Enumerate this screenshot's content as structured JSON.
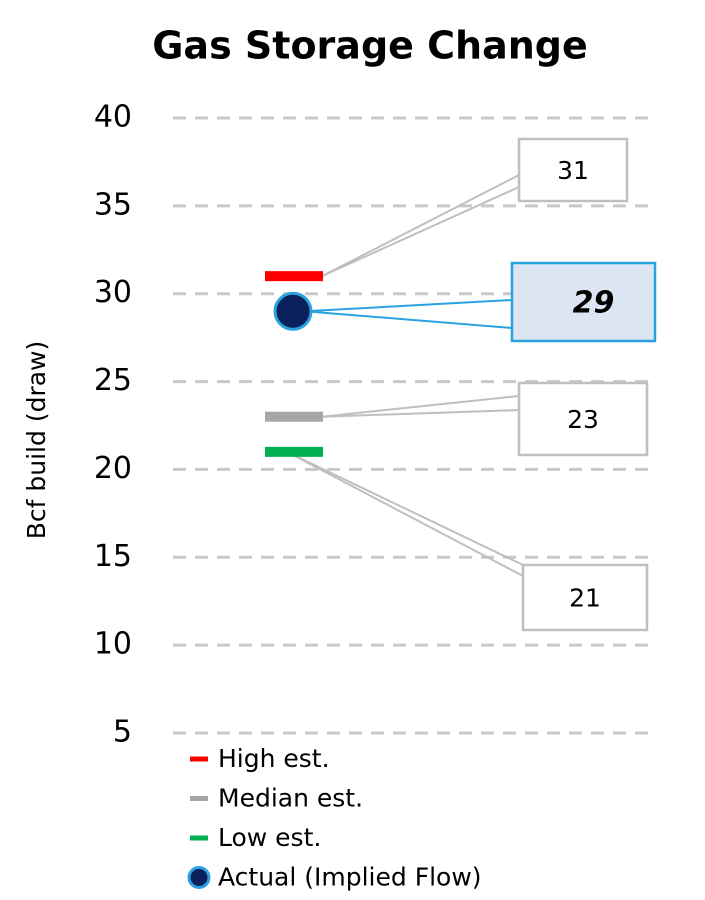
{
  "chart_data": {
    "type": "estimate-dots",
    "title": "Gas Storage Change",
    "y_label": "Bcf build (draw)",
    "ylim": [
      5,
      40
    ],
    "yticks": [
      5,
      10,
      15,
      20,
      25,
      30,
      35,
      40
    ],
    "grid": true,
    "series": [
      {
        "name": "High est.",
        "color": "#ff0000",
        "marker": "dash",
        "values": [
          31
        ]
      },
      {
        "name": "Median est.",
        "color": "#a6a6a6",
        "marker": "dash",
        "values": [
          23
        ]
      },
      {
        "name": "Low est.",
        "color": "#00b050",
        "marker": "dash",
        "values": [
          21
        ]
      },
      {
        "name": "Actual (Implied Flow)",
        "color": "#0a1f5c",
        "edge_color": "#29a3e0",
        "marker": "circle",
        "values": [
          29
        ]
      }
    ]
  }
}
